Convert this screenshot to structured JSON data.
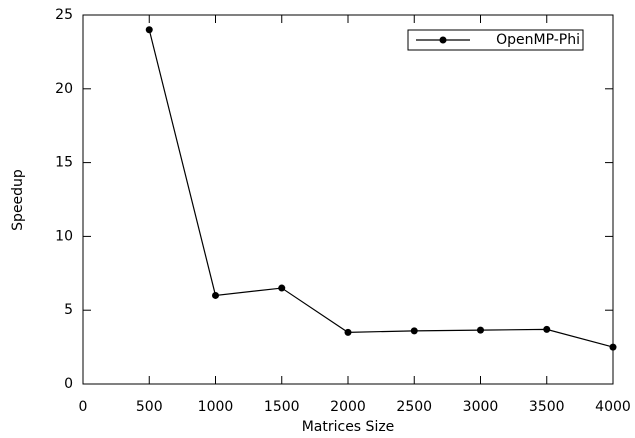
{
  "chart_data": {
    "type": "line",
    "x_label": "Matrices Size",
    "y_label": "Speedup",
    "x": [
      500,
      1000,
      1500,
      2000,
      2500,
      3000,
      3500,
      4000
    ],
    "series": [
      {
        "name": "OpenMP-Phi",
        "color": "#000000",
        "values": [
          24,
          6,
          6.5,
          3.5,
          3.6,
          3.65,
          3.7,
          2.5
        ]
      }
    ],
    "xlim": [
      0,
      4000
    ],
    "xticks": [
      0,
      500,
      1000,
      1500,
      2000,
      2500,
      3000,
      3500,
      4000
    ],
    "ylim": [
      0,
      25
    ],
    "yticks": [
      0,
      5,
      10,
      15,
      20,
      25
    ],
    "grid": false,
    "legend": "top right"
  }
}
